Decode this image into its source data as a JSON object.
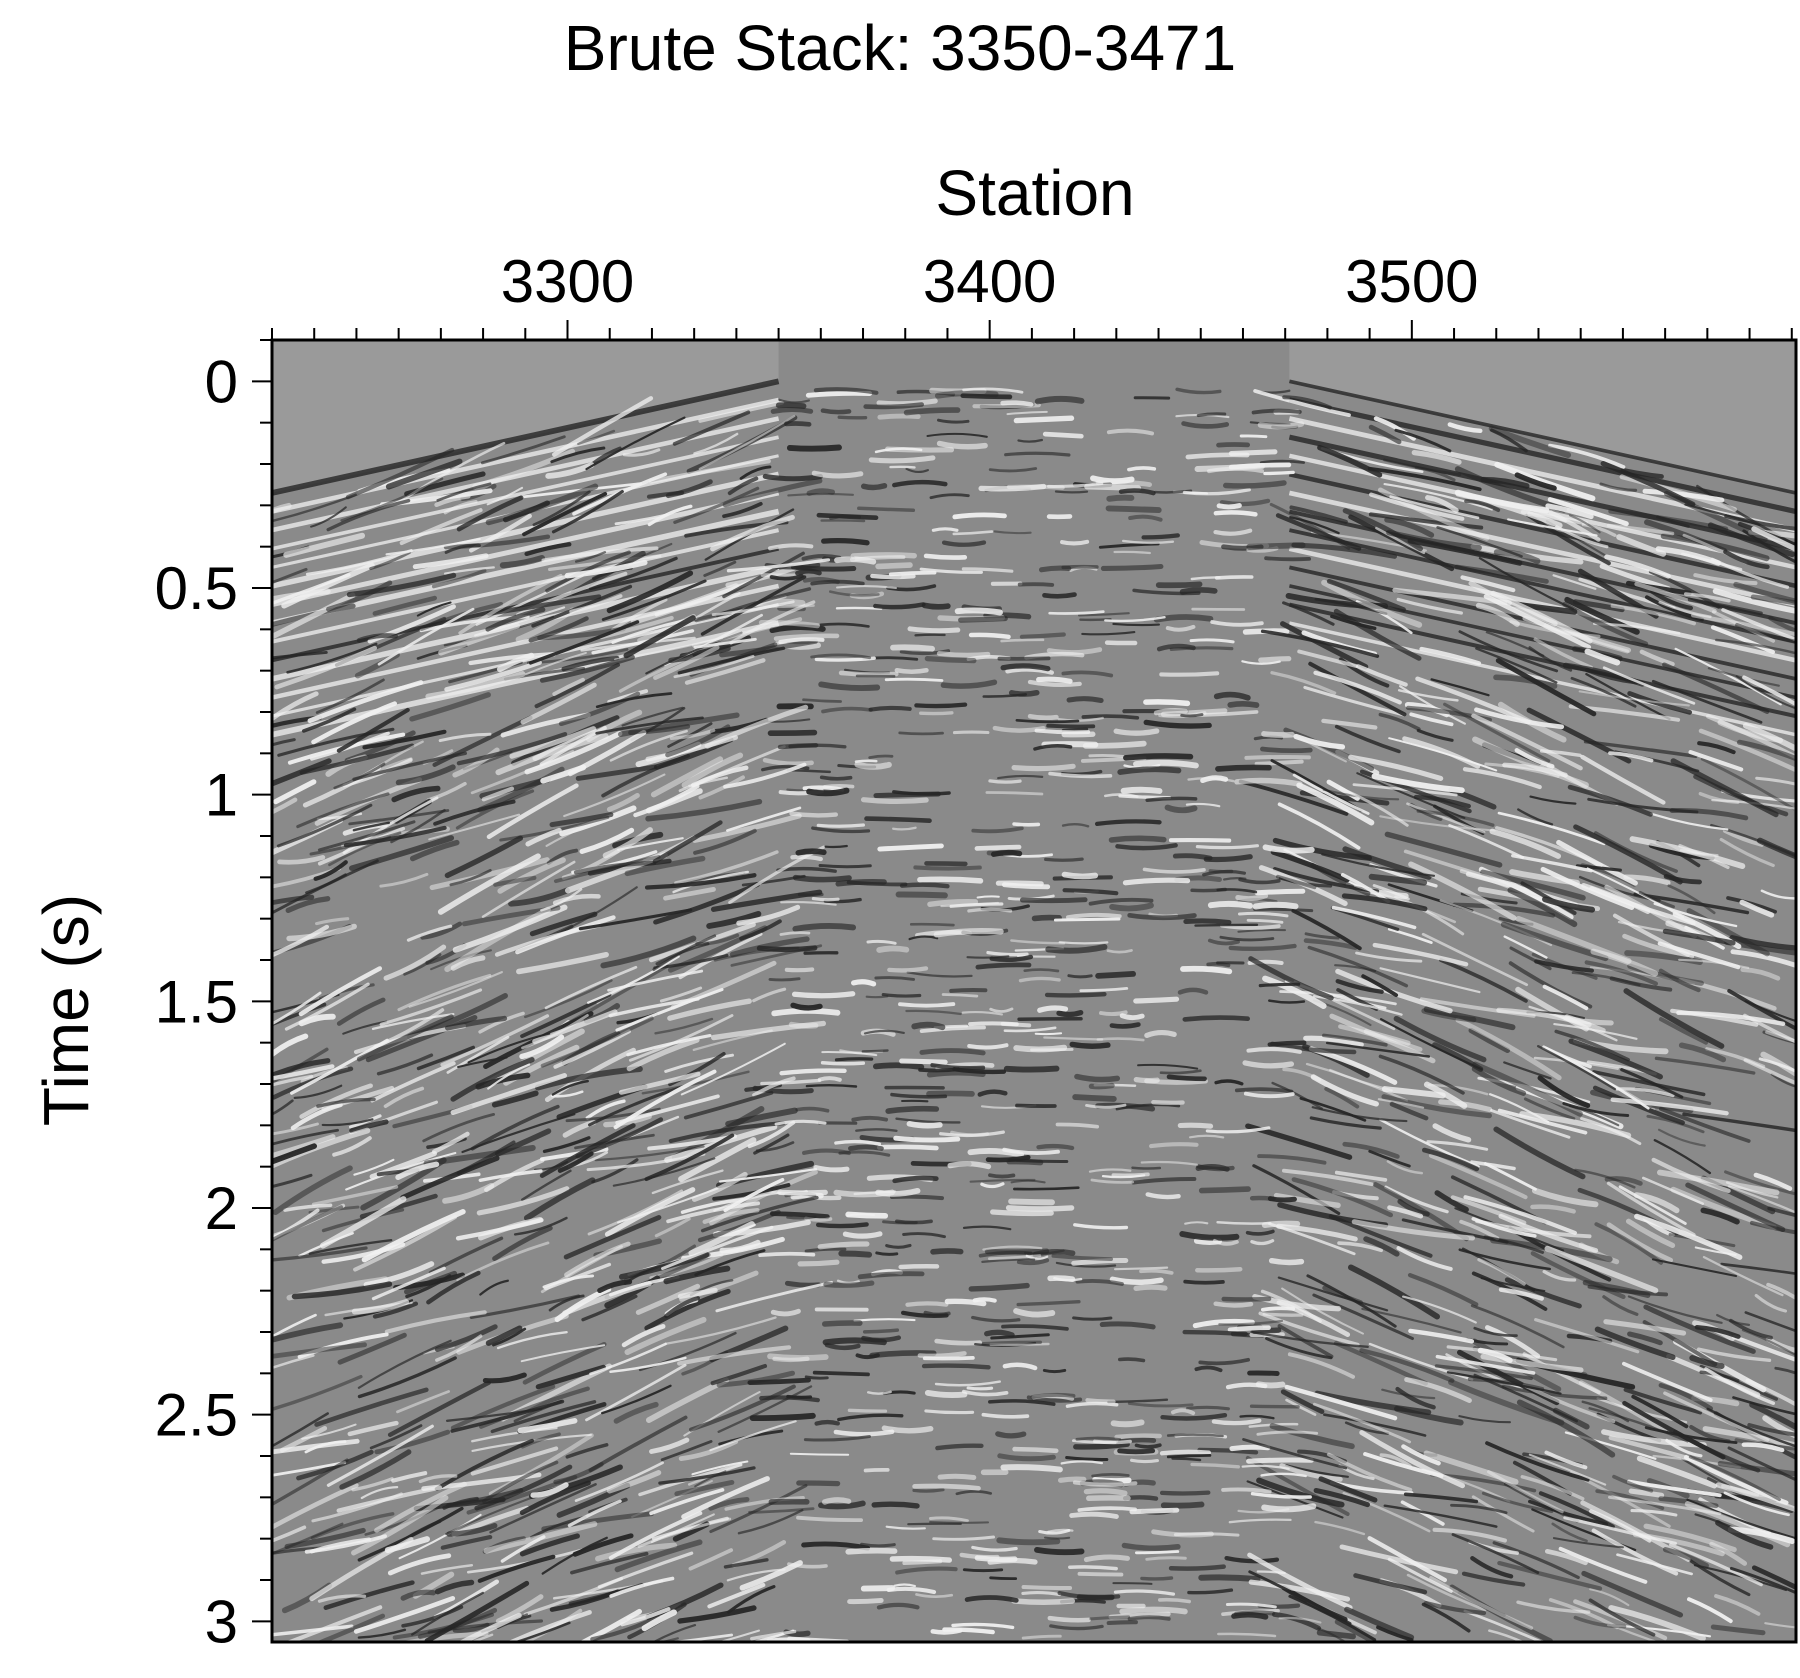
{
  "chart_data": {
    "type": "heatmap",
    "title": "Brute Stack: 3350-3471",
    "xlabel": "Station",
    "ylabel": "Time (s)",
    "x_axis_position": "top",
    "xlim": [
      3230,
      3591
    ],
    "ylim": [
      3.05,
      -0.1
    ],
    "y_inverted": true,
    "x_ticks": [
      3300,
      3400,
      3500
    ],
    "x_tick_labels": [
      "3300",
      "3400",
      "3500"
    ],
    "x_minor_step": 10,
    "y_ticks": [
      0,
      0.5,
      1,
      1.5,
      2,
      2.5,
      3
    ],
    "y_tick_labels": [
      "0",
      "0.5",
      "1",
      "1.5",
      "2",
      "2.5",
      "3"
    ],
    "y_minor_step": 0.1,
    "colormap": "grayscale seismic wiggle-density",
    "grid": false,
    "legend": "none",
    "first_arrival_apex": {
      "station": 3350,
      "time": 0.0
    },
    "first_arrival_apex_right": {
      "station": 3471,
      "time": 0.0
    },
    "first_arrival_left_edge": {
      "station": 3230,
      "time": 0.27
    },
    "first_arrival_right_edge": {
      "station": 3591,
      "time": 0.27
    }
  },
  "colors": {
    "background": "#ffffff",
    "axis": "#000000",
    "plot_mid_gray": "#8a8a8a"
  }
}
